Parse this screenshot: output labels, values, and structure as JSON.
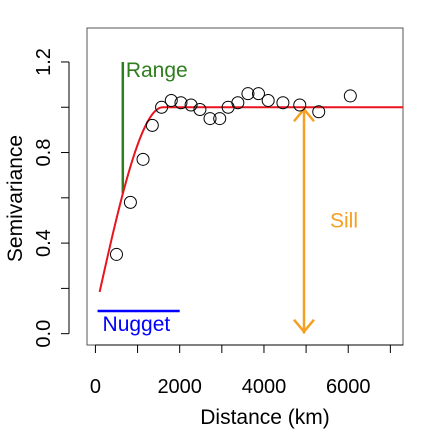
{
  "chart_data": {
    "type": "scatter",
    "xlabel": "Distance (km)",
    "ylabel": "Semivariance",
    "xlim": [
      -200,
      7300
    ],
    "ylim": [
      -0.05,
      1.35
    ],
    "x_ticks": [
      0,
      2000,
      4000,
      6000
    ],
    "x_tick_labels": [
      "0",
      "2000",
      "4000",
      "6000"
    ],
    "y_ticks": [
      0.0,
      0.2,
      0.4,
      0.6,
      0.8,
      1.0,
      1.2
    ],
    "y_tick_labels": [
      "0.0",
      "",
      "0.4",
      "",
      "0.8",
      "",
      "1.2"
    ],
    "points": [
      {
        "x": 500,
        "y": 0.35
      },
      {
        "x": 830,
        "y": 0.58
      },
      {
        "x": 1130,
        "y": 0.77
      },
      {
        "x": 1350,
        "y": 0.92
      },
      {
        "x": 1570,
        "y": 1.0
      },
      {
        "x": 1800,
        "y": 1.03
      },
      {
        "x": 2030,
        "y": 1.02
      },
      {
        "x": 2270,
        "y": 1.01
      },
      {
        "x": 2480,
        "y": 0.99
      },
      {
        "x": 2720,
        "y": 0.95
      },
      {
        "x": 2950,
        "y": 0.95
      },
      {
        "x": 3150,
        "y": 1.0
      },
      {
        "x": 3380,
        "y": 1.02
      },
      {
        "x": 3620,
        "y": 1.06
      },
      {
        "x": 3870,
        "y": 1.06
      },
      {
        "x": 4100,
        "y": 1.03
      },
      {
        "x": 4450,
        "y": 1.02
      },
      {
        "x": 4850,
        "y": 1.01
      },
      {
        "x": 5300,
        "y": 0.98
      },
      {
        "x": 6050,
        "y": 1.05
      }
    ],
    "model": {
      "nugget": 0.1,
      "sill": 1.0,
      "range": 1600,
      "x_start": 100,
      "x_end": 7300
    },
    "range_marker": {
      "x": 650,
      "y_from": 0.62,
      "y_to": 1.2,
      "label": "Range",
      "color": "#2e7d1e"
    },
    "nugget_marker": {
      "x_from": 50,
      "x_to": 2000,
      "y": 0.1,
      "label": "Nugget",
      "color": "#0000ff"
    },
    "sill_marker": {
      "x": 4950,
      "y_from": 0.0,
      "y_to": 1.0,
      "label": "Sill",
      "color": "#f5a020"
    },
    "curve_color": "#e8141e"
  }
}
